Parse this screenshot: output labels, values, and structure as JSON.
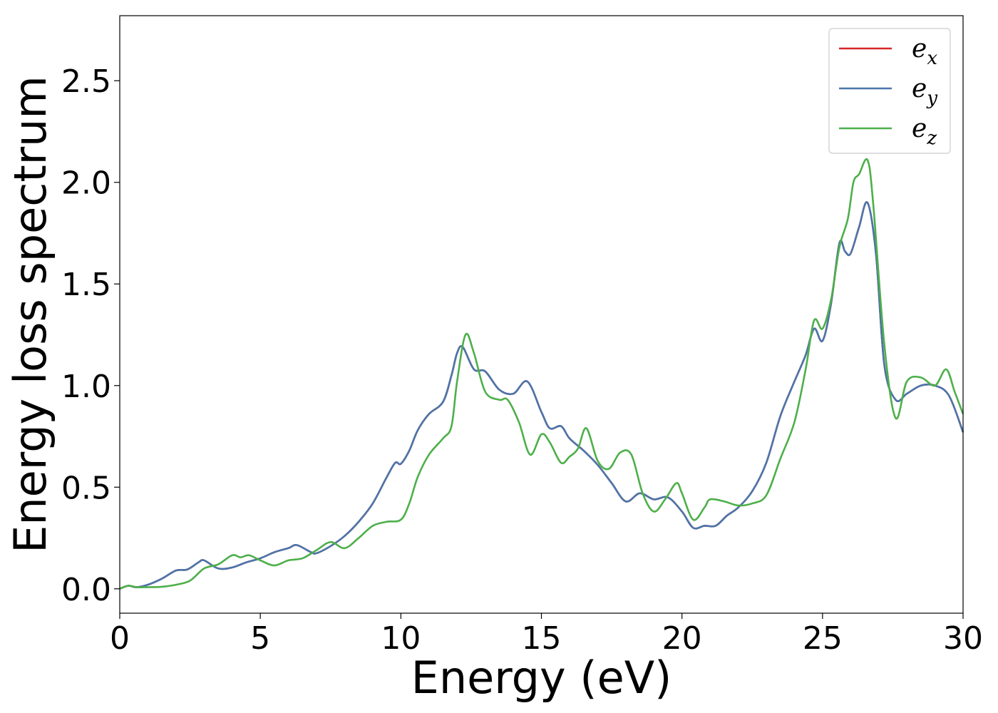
{
  "chart_data": {
    "type": "line",
    "xlabel": "Energy (eV)",
    "ylabel": "Energy loss spectrum",
    "xlim": [
      0,
      30
    ],
    "ylim": [
      -0.12,
      2.82
    ],
    "xticks": [
      0,
      5,
      10,
      15,
      20,
      25,
      30
    ],
    "xtick_labels": [
      "0",
      "5",
      "10",
      "15",
      "20",
      "25",
      "30"
    ],
    "yticks": [
      0.0,
      0.5,
      1.0,
      1.5,
      2.0,
      2.5
    ],
    "ytick_labels": [
      "0.0",
      "0.5",
      "1.0",
      "1.5",
      "2.0",
      "2.5"
    ],
    "grid": false,
    "legend_position": "top-right",
    "series": [
      {
        "name": "e_x",
        "legend_base": "e",
        "legend_sub": "x",
        "color": "#d62728",
        "x": [
          0,
          0.3,
          0.6,
          1.0,
          1.5,
          2.0,
          2.4,
          2.8,
          3.0,
          3.5,
          4.0,
          4.5,
          5.0,
          5.5,
          6.0,
          6.3,
          6.8,
          7.0,
          7.5,
          8.0,
          8.5,
          9.0,
          9.5,
          9.8,
          10.0,
          10.3,
          10.6,
          11.0,
          11.5,
          11.8,
          12.0,
          12.2,
          12.6,
          13.0,
          13.5,
          14.0,
          14.5,
          15.0,
          15.3,
          15.7,
          16.0,
          16.5,
          17.0,
          17.5,
          18.0,
          18.5,
          19.0,
          19.5,
          20.0,
          20.4,
          20.8,
          21.2,
          21.6,
          22.0,
          22.5,
          23.0,
          23.5,
          24.0,
          24.4,
          24.7,
          25.0,
          25.3,
          25.6,
          25.8,
          26.0,
          26.3,
          26.6,
          26.9,
          27.2,
          27.6,
          28.0,
          28.5,
          29.0,
          29.5,
          30.0
        ],
        "y": [
          0.0,
          0.015,
          0.008,
          0.02,
          0.05,
          0.09,
          0.095,
          0.13,
          0.14,
          0.1,
          0.105,
          0.13,
          0.15,
          0.18,
          0.2,
          0.215,
          0.18,
          0.175,
          0.21,
          0.26,
          0.33,
          0.42,
          0.55,
          0.62,
          0.615,
          0.68,
          0.78,
          0.86,
          0.92,
          1.05,
          1.16,
          1.19,
          1.08,
          1.07,
          0.98,
          0.96,
          1.02,
          0.87,
          0.79,
          0.8,
          0.74,
          0.68,
          0.61,
          0.52,
          0.43,
          0.47,
          0.44,
          0.45,
          0.38,
          0.3,
          0.31,
          0.31,
          0.36,
          0.4,
          0.48,
          0.62,
          0.85,
          1.02,
          1.15,
          1.28,
          1.22,
          1.4,
          1.7,
          1.66,
          1.65,
          1.78,
          1.9,
          1.65,
          1.1,
          0.93,
          0.96,
          1.0,
          1.0,
          0.95,
          0.77
        ]
      },
      {
        "name": "e_y",
        "legend_base": "e",
        "legend_sub": "y",
        "color": "#4a76ab",
        "x": [
          0,
          0.3,
          0.6,
          1.0,
          1.5,
          2.0,
          2.4,
          2.8,
          3.0,
          3.5,
          4.0,
          4.5,
          5.0,
          5.5,
          6.0,
          6.3,
          6.8,
          7.0,
          7.5,
          8.0,
          8.5,
          9.0,
          9.5,
          9.8,
          10.0,
          10.3,
          10.6,
          11.0,
          11.5,
          11.8,
          12.0,
          12.2,
          12.6,
          13.0,
          13.5,
          14.0,
          14.5,
          15.0,
          15.3,
          15.7,
          16.0,
          16.5,
          17.0,
          17.5,
          18.0,
          18.5,
          19.0,
          19.5,
          20.0,
          20.4,
          20.8,
          21.2,
          21.6,
          22.0,
          22.5,
          23.0,
          23.5,
          24.0,
          24.4,
          24.7,
          25.0,
          25.3,
          25.6,
          25.8,
          26.0,
          26.3,
          26.6,
          26.9,
          27.2,
          27.6,
          28.0,
          28.5,
          29.0,
          29.5,
          30.0
        ],
        "y": [
          0.0,
          0.015,
          0.008,
          0.02,
          0.05,
          0.09,
          0.095,
          0.13,
          0.14,
          0.1,
          0.105,
          0.13,
          0.15,
          0.18,
          0.2,
          0.215,
          0.18,
          0.175,
          0.21,
          0.26,
          0.33,
          0.42,
          0.55,
          0.62,
          0.615,
          0.68,
          0.78,
          0.86,
          0.92,
          1.05,
          1.16,
          1.19,
          1.08,
          1.07,
          0.98,
          0.96,
          1.02,
          0.87,
          0.79,
          0.8,
          0.74,
          0.68,
          0.61,
          0.52,
          0.43,
          0.47,
          0.44,
          0.45,
          0.38,
          0.3,
          0.31,
          0.31,
          0.36,
          0.4,
          0.48,
          0.62,
          0.85,
          1.02,
          1.15,
          1.28,
          1.22,
          1.4,
          1.7,
          1.66,
          1.65,
          1.78,
          1.9,
          1.65,
          1.1,
          0.93,
          0.96,
          1.0,
          1.0,
          0.95,
          0.77
        ]
      },
      {
        "name": "e_z",
        "legend_base": "e",
        "legend_sub": "z",
        "color": "#4daf4a",
        "x": [
          0,
          0.3,
          0.6,
          1.0,
          1.5,
          2.0,
          2.5,
          3.0,
          3.5,
          4.0,
          4.3,
          4.6,
          5.0,
          5.5,
          6.0,
          6.5,
          7.0,
          7.5,
          8.0,
          8.5,
          9.0,
          9.5,
          10.0,
          10.3,
          10.6,
          11.0,
          11.5,
          11.8,
          12.0,
          12.3,
          12.6,
          13.0,
          13.5,
          13.8,
          14.2,
          14.6,
          15.0,
          15.3,
          15.7,
          16.0,
          16.3,
          16.6,
          17.0,
          17.4,
          17.8,
          18.2,
          18.6,
          19.0,
          19.4,
          19.8,
          20.0,
          20.4,
          20.8,
          21.0,
          21.5,
          22.0,
          22.5,
          23.0,
          23.5,
          24.0,
          24.4,
          24.7,
          25.0,
          25.3,
          25.6,
          25.9,
          26.1,
          26.3,
          26.6,
          26.8,
          27.2,
          27.6,
          28.0,
          28.5,
          29.0,
          29.4,
          29.7,
          30.0
        ],
        "y": [
          0.0,
          0.015,
          0.008,
          0.008,
          0.01,
          0.02,
          0.04,
          0.1,
          0.12,
          0.165,
          0.155,
          0.165,
          0.14,
          0.115,
          0.14,
          0.15,
          0.19,
          0.23,
          0.2,
          0.25,
          0.31,
          0.33,
          0.34,
          0.42,
          0.55,
          0.66,
          0.74,
          0.8,
          1.02,
          1.25,
          1.16,
          0.97,
          0.93,
          0.93,
          0.82,
          0.66,
          0.76,
          0.72,
          0.62,
          0.65,
          0.69,
          0.79,
          0.63,
          0.59,
          0.67,
          0.66,
          0.47,
          0.38,
          0.44,
          0.52,
          0.47,
          0.34,
          0.4,
          0.44,
          0.43,
          0.41,
          0.42,
          0.46,
          0.64,
          0.82,
          1.08,
          1.32,
          1.28,
          1.42,
          1.68,
          1.82,
          2.0,
          2.04,
          2.11,
          1.9,
          1.2,
          0.84,
          1.02,
          1.04,
          1.0,
          1.08,
          0.97,
          0.86
        ]
      }
    ]
  }
}
